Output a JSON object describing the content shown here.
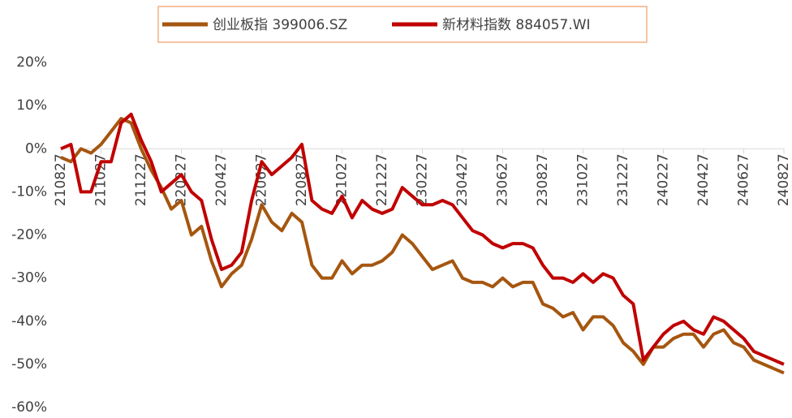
{
  "chart_data": {
    "type": "line",
    "categories": [
      "210827",
      null,
      null,
      null,
      "211027",
      null,
      null,
      null,
      "211227",
      null,
      null,
      null,
      "220227",
      null,
      null,
      null,
      "220427",
      null,
      null,
      null,
      "220627",
      null,
      null,
      null,
      "220827",
      null,
      null,
      null,
      "221027",
      null,
      null,
      null,
      "221227",
      null,
      null,
      null,
      "230227",
      null,
      null,
      null,
      "230427",
      null,
      null,
      null,
      "230627",
      null,
      null,
      null,
      "230827",
      null,
      null,
      null,
      "231027",
      null,
      null,
      null,
      "231227",
      null,
      null,
      null,
      "240227",
      null,
      null,
      null,
      "240427",
      null,
      null,
      null,
      "240627",
      null,
      null,
      null,
      "240827"
    ],
    "series": [
      {
        "name": "创业板指 399006.SZ",
        "color": "#a5560f",
        "values": [
          -2,
          -3,
          0,
          -1,
          1,
          4,
          7,
          6,
          0,
          -5,
          -9,
          -14,
          -12,
          -20,
          -18,
          -26,
          -32,
          -29,
          -27,
          -21,
          -13,
          -17,
          -19,
          -15,
          -17,
          -27,
          -30,
          -30,
          -26,
          -29,
          -27,
          -27,
          -26,
          -24,
          -20,
          -22,
          -25,
          -28,
          -27,
          -26,
          -30,
          -31,
          -31,
          -32,
          -30,
          -32,
          -31,
          -31,
          -36,
          -37,
          -39,
          -38,
          -42,
          -39,
          -39,
          -41,
          -45,
          -47,
          -50,
          -46,
          -46,
          -44,
          -43,
          -43,
          -46,
          -43,
          -42,
          -45,
          -46,
          -49,
          -50,
          -51,
          -52
        ]
      },
      {
        "name": "新材料指数 884057.WI",
        "color": "#c00000",
        "values": [
          0,
          1,
          -10,
          -10,
          -3,
          -3,
          6,
          8,
          2,
          -3,
          -10,
          -8,
          -6,
          -10,
          -12,
          -21,
          -28,
          -27,
          -24,
          -12,
          -3,
          -6,
          -4,
          -2,
          1,
          -12,
          -14,
          -15,
          -11,
          -16,
          -12,
          -14,
          -15,
          -14,
          -9,
          -11,
          -13,
          -13,
          -12,
          -13,
          -16,
          -19,
          -20,
          -22,
          -23,
          -22,
          -22,
          -23,
          -27,
          -30,
          -30,
          -31,
          -29,
          -31,
          -29,
          -30,
          -34,
          -36,
          -49,
          -46,
          -43,
          -41,
          -40,
          -42,
          -43,
          -39,
          -40,
          -42,
          -44,
          -47,
          -48,
          -49,
          -50
        ]
      }
    ],
    "ylim": [
      -60,
      20
    ],
    "yticks": [
      {
        "value": -60,
        "label": "-60%"
      },
      {
        "value": -50,
        "label": "-50%"
      },
      {
        "value": -40,
        "label": "-40%"
      },
      {
        "value": -30,
        "label": "-30%"
      },
      {
        "value": -20,
        "label": "-20%"
      },
      {
        "value": -10,
        "label": "-10%"
      },
      {
        "value": 0,
        "label": "0%"
      },
      {
        "value": 10,
        "label": "10%"
      },
      {
        "value": 20,
        "label": "20%"
      }
    ],
    "legend": "top"
  }
}
